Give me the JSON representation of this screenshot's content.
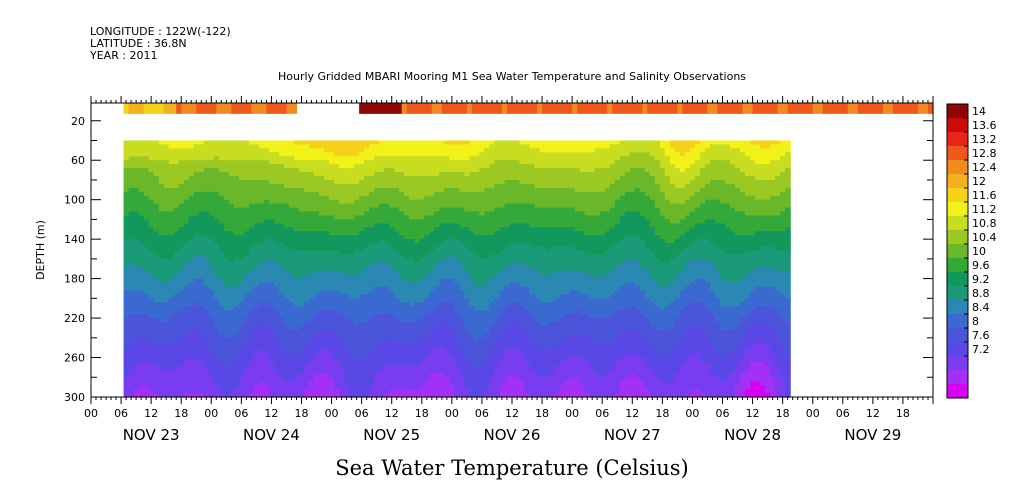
{
  "header": {
    "longitude": "LONGITUDE : 122W(-122)",
    "latitude": "LATITUDE : 36.8N",
    "year": "YEAR : 2011"
  },
  "chart_data": {
    "type": "heatmap",
    "title": "Hourly Gridded MBARI Mooring M1 Sea Water Temperature and Salinity Observations",
    "xlabel": "Sea Water Temperature (Celsius)",
    "ylabel": "DEPTH (m)",
    "x_hour_ticks": [
      "00",
      "06",
      "12",
      "18",
      "00",
      "06",
      "12",
      "18",
      "00",
      "06",
      "12",
      "18",
      "00",
      "06",
      "12",
      "18",
      "00",
      "06",
      "12",
      "18",
      "00",
      "06",
      "12",
      "18",
      "00",
      "06",
      "12",
      "18"
    ],
    "x_date_labels": [
      "NOV 23",
      "NOV 24",
      "NOV 25",
      "NOV 26",
      "NOV 27",
      "NOV 28",
      "NOV 29"
    ],
    "y_ticks": [
      20,
      60,
      100,
      140,
      180,
      220,
      260,
      300
    ],
    "ylim": [
      300,
      2
    ],
    "x_range_hours": [
      0,
      168
    ],
    "data_x_range_hours": [
      6.5,
      139.5
    ],
    "colorbar": {
      "levels": [
        7.2,
        7.6,
        8,
        8.4,
        8.8,
        9.2,
        9.6,
        10,
        10.4,
        10.8,
        11.2,
        11.6,
        12,
        12.4,
        12.8,
        13.2,
        13.6,
        14
      ],
      "labels": [
        "14",
        "13.6",
        "13.2",
        "12.8",
        "12.4",
        "12",
        "11.6",
        "11.2",
        "10.8",
        "10.4",
        "10",
        "9.6",
        "9.2",
        "8.8",
        "8.4",
        "8",
        "7.6",
        "7.2"
      ],
      "colors": [
        "#d900f7",
        "#a330f5",
        "#7a3cf0",
        "#5a48e6",
        "#4a55da",
        "#3a6ad0",
        "#2a88b2",
        "#1a9a78",
        "#12985c",
        "#35a83a",
        "#6ab82a",
        "#9cc824",
        "#c8dc20",
        "#f2f218",
        "#f4d218",
        "#f3b020",
        "#f18b1e",
        "#f0581b",
        "#ec2418",
        "#cc0a0a",
        "#8e0606"
      ]
    },
    "surface_segments": [
      {
        "start_hour": 6.5,
        "end_hour": 17,
        "temp": 12.8
      },
      {
        "start_hour": 17,
        "end_hour": 41,
        "temp": 13.6
      },
      {
        "start_hour": 53.5,
        "end_hour": 62,
        "temp": 14.2
      },
      {
        "start_hour": 62,
        "end_hour": 168,
        "temp": 13.7
      }
    ],
    "profile_anchors": [
      {
        "depth": 40,
        "temp": 11.9
      },
      {
        "depth": 70,
        "temp": 11.3
      },
      {
        "depth": 100,
        "temp": 10.8
      },
      {
        "depth": 130,
        "temp": 10.3
      },
      {
        "depth": 160,
        "temp": 9.8
      },
      {
        "depth": 190,
        "temp": 9.3
      },
      {
        "depth": 220,
        "temp": 8.8
      },
      {
        "depth": 250,
        "temp": 8.4
      },
      {
        "depth": 280,
        "temp": 8.0
      },
      {
        "depth": 300,
        "temp": 7.8
      }
    ],
    "warm_events": [
      {
        "hour": 46,
        "width": 5,
        "amp": 0.7
      },
      {
        "hour": 60,
        "width": 6,
        "amp": 0.6
      },
      {
        "hour": 75,
        "width": 4,
        "amp": 0.6
      },
      {
        "hour": 95,
        "width": 4,
        "amp": 0.6
      },
      {
        "hour": 118,
        "width": 3,
        "amp": 0.8
      },
      {
        "hour": 133,
        "width": 4,
        "amp": 0.7
      }
    ],
    "cool_bottom_events": [
      {
        "hour": 16,
        "width": 4,
        "amp": 0.3
      },
      {
        "hour": 42,
        "width": 4,
        "amp": 0.4
      },
      {
        "hour": 67,
        "width": 4,
        "amp": 0.5
      },
      {
        "hour": 90,
        "width": 4,
        "amp": 0.45
      },
      {
        "hour": 107,
        "width": 4,
        "amp": 0.45
      },
      {
        "hour": 131,
        "width": 5,
        "amp": 0.55
      }
    ]
  }
}
